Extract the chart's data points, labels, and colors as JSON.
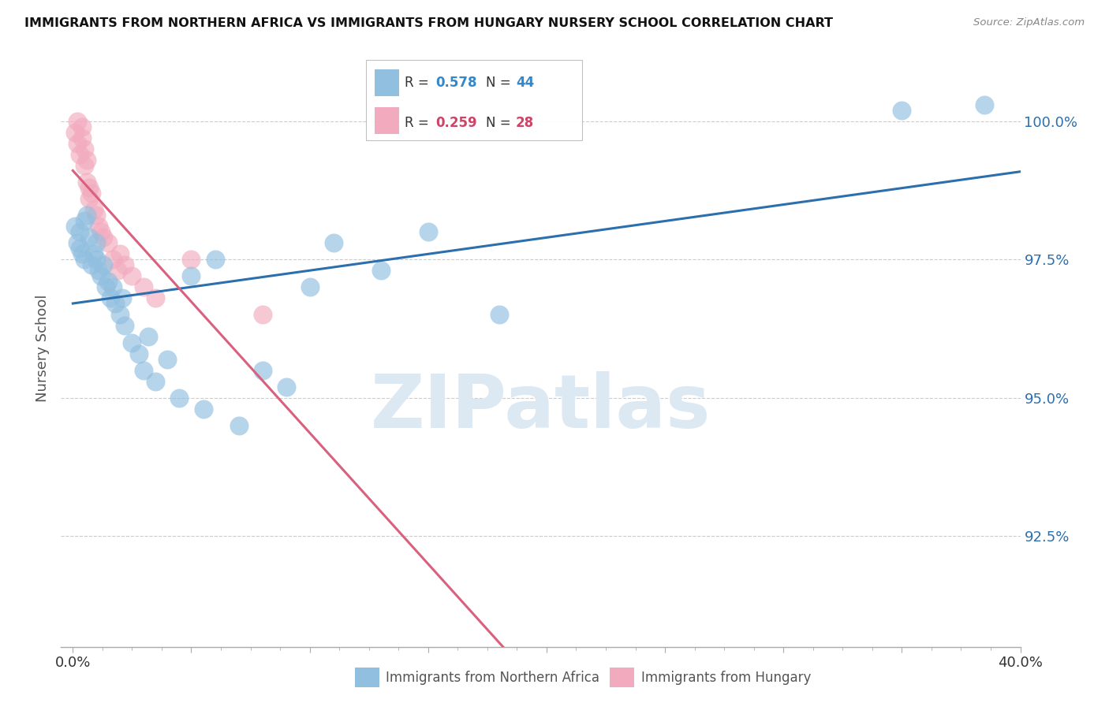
{
  "title": "IMMIGRANTS FROM NORTHERN AFRICA VS IMMIGRANTS FROM HUNGARY NURSERY SCHOOL CORRELATION CHART",
  "source": "Source: ZipAtlas.com",
  "xlabel_blue": "Immigrants from Northern Africa",
  "xlabel_pink": "Immigrants from Hungary",
  "ylabel": "Nursery School",
  "xlim": [
    -0.5,
    40.0
  ],
  "ylim": [
    90.5,
    101.3
  ],
  "yticks": [
    92.5,
    95.0,
    97.5,
    100.0
  ],
  "ytick_labels": [
    "92.5%",
    "95.0%",
    "97.5%",
    "100.0%"
  ],
  "xtick_positions": [
    0.0,
    5.0,
    10.0,
    15.0,
    20.0,
    25.0,
    30.0,
    35.0,
    40.0
  ],
  "xtick_labels_show": [
    "0.0%",
    "",
    "",
    "",
    "",
    "",
    "",
    "",
    "40.0%"
  ],
  "blue_R": 0.578,
  "blue_N": 44,
  "pink_R": 0.259,
  "pink_N": 28,
  "blue_color": "#91bfdf",
  "pink_color": "#f2abbe",
  "blue_line_color": "#2c6fad",
  "pink_line_color": "#d9607e",
  "legend_R_color_blue": "#3388cc",
  "legend_R_color_pink": "#cc4466",
  "background_color": "#ffffff",
  "grid_color": "#cccccc",
  "watermark_color": "#dce8f2",
  "blue_x": [
    0.1,
    0.2,
    0.3,
    0.3,
    0.4,
    0.5,
    0.5,
    0.6,
    0.7,
    0.8,
    0.9,
    1.0,
    1.0,
    1.1,
    1.2,
    1.3,
    1.4,
    1.5,
    1.6,
    1.7,
    1.8,
    2.0,
    2.1,
    2.2,
    2.5,
    2.8,
    3.0,
    3.2,
    3.5,
    4.0,
    4.5,
    5.0,
    5.5,
    6.0,
    7.0,
    8.0,
    9.0,
    10.0,
    11.0,
    13.0,
    15.0,
    18.0,
    35.0,
    38.5
  ],
  "blue_y": [
    98.1,
    97.8,
    97.7,
    98.0,
    97.6,
    98.2,
    97.5,
    98.3,
    97.9,
    97.4,
    97.6,
    97.5,
    97.8,
    97.3,
    97.2,
    97.4,
    97.0,
    97.1,
    96.8,
    97.0,
    96.7,
    96.5,
    96.8,
    96.3,
    96.0,
    95.8,
    95.5,
    96.1,
    95.3,
    95.7,
    95.0,
    97.2,
    94.8,
    97.5,
    94.5,
    95.5,
    95.2,
    97.0,
    97.8,
    97.3,
    98.0,
    96.5,
    100.2,
    100.3
  ],
  "pink_x": [
    0.1,
    0.2,
    0.2,
    0.3,
    0.4,
    0.4,
    0.5,
    0.5,
    0.6,
    0.6,
    0.7,
    0.7,
    0.8,
    0.9,
    1.0,
    1.1,
    1.2,
    1.3,
    1.5,
    1.7,
    1.9,
    2.0,
    2.2,
    2.5,
    3.0,
    3.5,
    5.0,
    8.0
  ],
  "pink_y": [
    99.8,
    99.6,
    100.0,
    99.4,
    99.7,
    99.9,
    99.2,
    99.5,
    98.9,
    99.3,
    98.6,
    98.8,
    98.7,
    98.4,
    98.3,
    98.1,
    98.0,
    97.9,
    97.8,
    97.5,
    97.3,
    97.6,
    97.4,
    97.2,
    97.0,
    96.8,
    97.5,
    96.5
  ]
}
